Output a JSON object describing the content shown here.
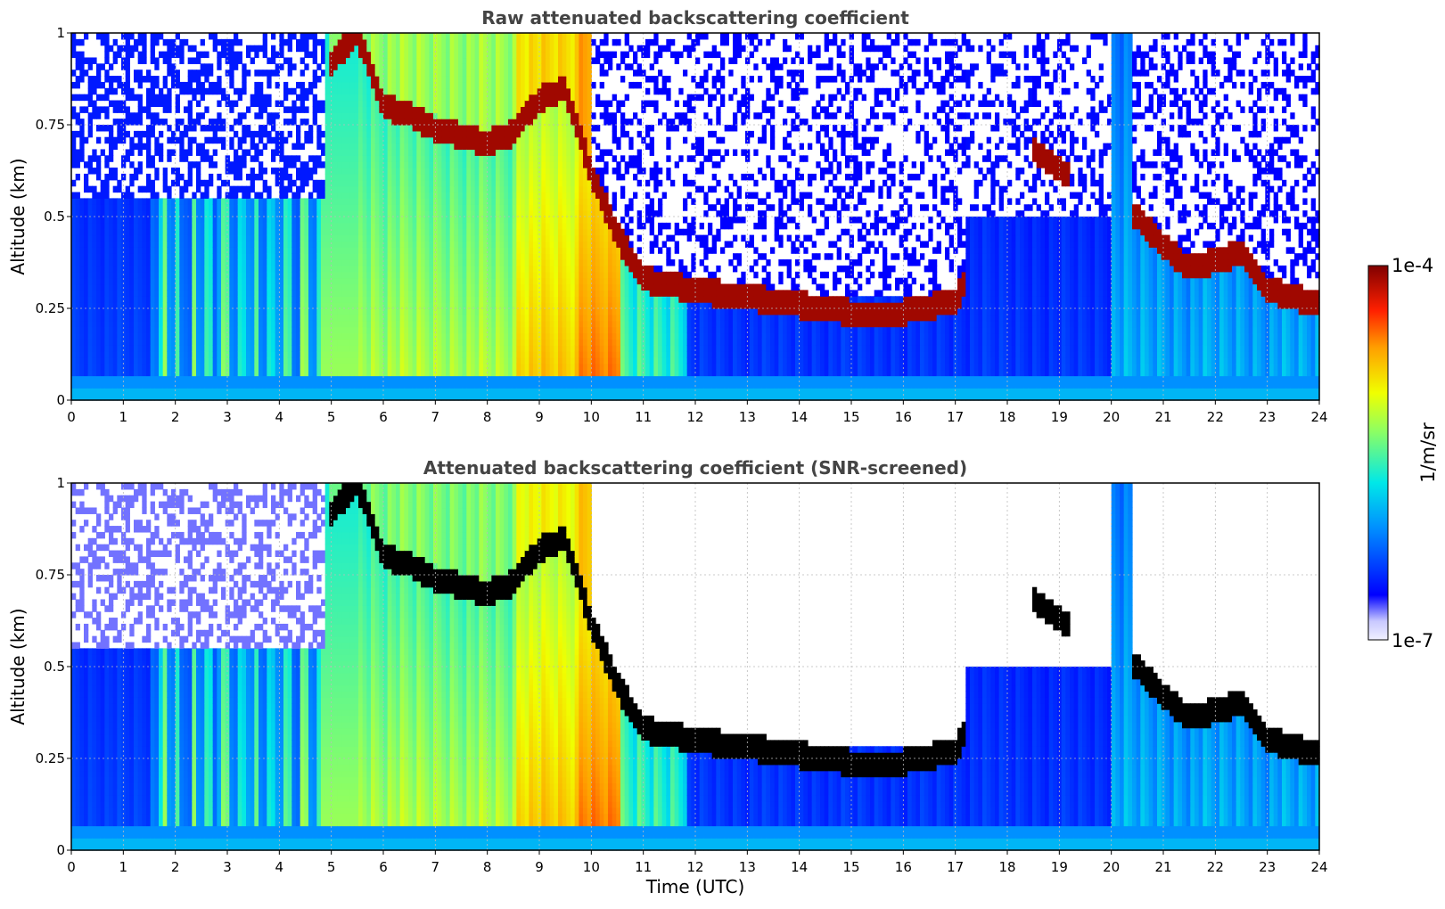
{
  "chart_data": [
    {
      "type": "heatmap",
      "title": "Raw attenuated backscattering coefficient",
      "xlabel": "",
      "ylabel": "Altitude (km)",
      "xlim": [
        0,
        24
      ],
      "ylim": [
        0,
        1
      ],
      "x_ticks": [
        "0",
        "1",
        "2",
        "3",
        "4",
        "5",
        "6",
        "7",
        "8",
        "9",
        "10",
        "11",
        "12",
        "13",
        "14",
        "15",
        "16",
        "17",
        "18",
        "19",
        "20",
        "21",
        "22",
        "23",
        "24"
      ],
      "y_ticks": [
        "0",
        "0.25",
        "0.5",
        "0.75",
        "1"
      ],
      "y_tick_values": [
        0,
        0.25,
        0.5,
        0.75,
        1
      ],
      "grid": true,
      "colormap": "jet",
      "screened": false,
      "cloud_base_altitude_km": [
        [
          0,
          null
        ],
        [
          5.0,
          0.92
        ],
        [
          5.5,
          1.0
        ],
        [
          6.0,
          0.8
        ],
        [
          6.5,
          0.78
        ],
        [
          7.0,
          0.74
        ],
        [
          7.5,
          0.72
        ],
        [
          8.0,
          0.7
        ],
        [
          8.5,
          0.73
        ],
        [
          9.0,
          0.82
        ],
        [
          9.5,
          0.85
        ],
        [
          10.0,
          0.62
        ],
        [
          10.5,
          0.45
        ],
        [
          11.0,
          0.33
        ],
        [
          12.0,
          0.3
        ],
        [
          13.0,
          0.28
        ],
        [
          14.0,
          0.26
        ],
        [
          15.0,
          0.24
        ],
        [
          16.0,
          0.24
        ],
        [
          17.0,
          0.27
        ],
        [
          18.5,
          0.68
        ],
        [
          20.5,
          0.5
        ],
        [
          21.0,
          0.42
        ],
        [
          21.5,
          0.36
        ],
        [
          22.0,
          0.38
        ],
        [
          22.5,
          0.4
        ],
        [
          23.0,
          0.3
        ],
        [
          24.0,
          0.26
        ]
      ]
    },
    {
      "type": "heatmap",
      "title": "Attenuated backscattering coefficient (SNR-screened)",
      "xlabel": "Time (UTC)",
      "ylabel": "Altitude (km)",
      "xlim": [
        0,
        24
      ],
      "ylim": [
        0,
        1
      ],
      "x_ticks": [
        "0",
        "1",
        "2",
        "3",
        "4",
        "5",
        "6",
        "7",
        "8",
        "9",
        "10",
        "11",
        "12",
        "13",
        "14",
        "15",
        "16",
        "17",
        "18",
        "19",
        "20",
        "21",
        "22",
        "23",
        "24"
      ],
      "y_ticks": [
        "0",
        "0.25",
        "0.5",
        "0.75",
        "1"
      ],
      "y_tick_values": [
        0,
        0.25,
        0.5,
        0.75,
        1
      ],
      "grid": true,
      "colormap": "jet",
      "screened": true
    }
  ],
  "colorbar": {
    "label": "1/m/sr",
    "max_label": "1e-4",
    "min_label": "1e-7",
    "max_value": 0.0001,
    "min_value": 1e-07,
    "scale": "log"
  },
  "colors": {
    "title": "#444444",
    "grid": "#bbbbbb",
    "cloud_peak": "#8b0000",
    "screened_saturation": "#000000"
  }
}
